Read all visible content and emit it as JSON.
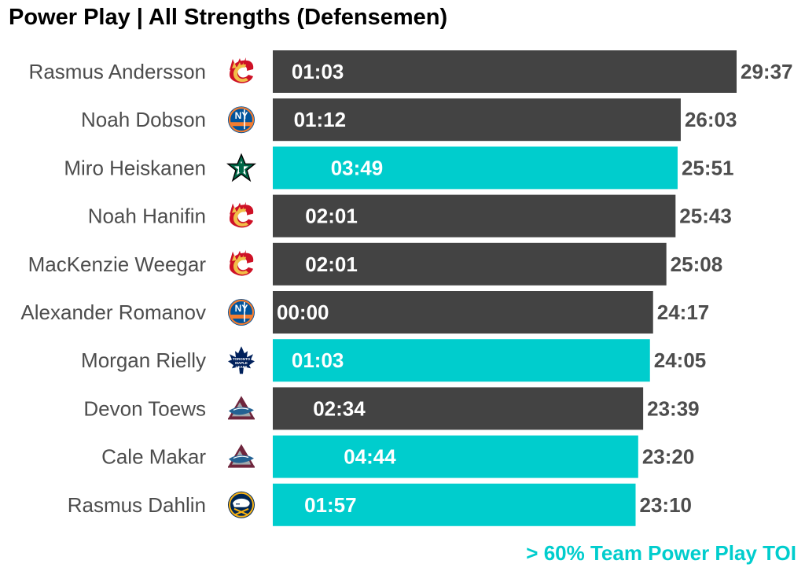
{
  "chart_data": {
    "type": "bar",
    "orientation": "horizontal",
    "title": "Power Play | All Strengths (Defensemen)",
    "xlabel": "",
    "ylabel": "",
    "units": "minutes:seconds",
    "xlim_minutes": [
      0,
      29.617
    ],
    "categories": [
      "Rasmus Andersson",
      "Noah Dobson",
      "Miro Heiskanen",
      "Noah Hanifin",
      "MacKenzie Weegar",
      "Alexander Romanov",
      "Morgan Rielly",
      "Devon Toews",
      "Cale Makar",
      "Rasmus Dahlin"
    ],
    "teams": [
      "CGY",
      "NYI",
      "DAL",
      "CGY",
      "CGY",
      "NYI",
      "TOR",
      "COL",
      "COL",
      "BUF"
    ],
    "total_toi_labels": [
      "29:37",
      "26:03",
      "25:51",
      "25:43",
      "25:08",
      "24:17",
      "24:05",
      "23:39",
      "23:20",
      "23:10"
    ],
    "total_toi_minutes": [
      29.617,
      26.05,
      25.85,
      25.717,
      25.133,
      24.283,
      24.083,
      23.65,
      23.333,
      23.167
    ],
    "pp_toi_labels": [
      "01:03",
      "01:12",
      "03:49",
      "02:01",
      "02:01",
      "00:00",
      "01:03",
      "02:34",
      "04:44",
      "01:57"
    ],
    "pp_toi_minutes": [
      1.05,
      1.2,
      3.817,
      2.017,
      2.017,
      0.0,
      1.05,
      2.567,
      4.733,
      1.95
    ],
    "highlight_over_60pct_team_pp": [
      false,
      false,
      true,
      false,
      false,
      false,
      true,
      false,
      true,
      true
    ],
    "colors": {
      "default_bar": "#434343",
      "highlight_bar": "#00CDCD",
      "inner_label": "#ffffff",
      "outer_label": "#4d4d4d",
      "player_label": "#4d4d4d"
    },
    "legend": {
      "text": "> 60% Team Power Play TOI",
      "color": "#00CDCD",
      "placement": "bottom-right"
    }
  }
}
